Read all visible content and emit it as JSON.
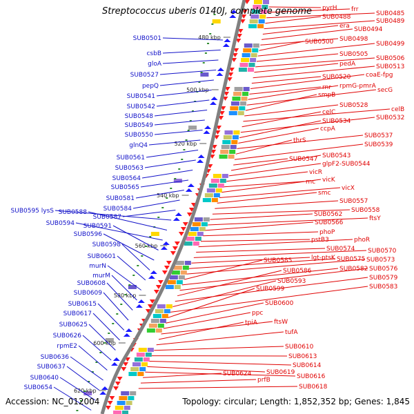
{
  "title": "Streptococcus uberis 0140J, complete genome",
  "footer": {
    "accession": "Accession: NC_012004",
    "topology": "Topology: circular; Length: 1,852,352 bp; Genes: 1,845"
  },
  "colors": {
    "left_labels": "#1010c8",
    "right_labels": "#e00000",
    "left_arrows": "#1a1aff",
    "right_arrows": "#ff1a1a",
    "backbone": "#808080",
    "tick_marks": "#2e8b2e"
  },
  "kbp_ticks": [
    "480 kbp",
    "500 kbp",
    "520 kbp",
    "540 kbp",
    "560 kbp",
    "580 kbp",
    "600 kbp",
    "620 kbp"
  ],
  "left_genes": [
    "SUB0501",
    "csbB",
    "gloA",
    "SUB0527",
    "pepQ",
    "SUB0541",
    "SUB0542",
    "SUB0548",
    "SUB0549",
    "SUB0550",
    "glnQ4",
    "SUB0561",
    "SUB0563",
    "SUB0564",
    "SUB0565",
    "SUB0581",
    "SUB0584",
    "SUB0587",
    "SUB0595 lysS",
    "SUB0588",
    "SUB0594",
    "SUB0591",
    "SUB0596",
    "SUB0598",
    "SUB0601",
    "murN",
    "murM",
    "SUB0608",
    "SUB0609",
    "SUB0615",
    "SUB0617",
    "SUB0625",
    "SUB0626",
    "rpmE2",
    "SUB0636",
    "SUB0637",
    "SUB0640",
    "SUB0654"
  ],
  "right_genes": [
    "pyrH",
    "frr",
    "SUB0485",
    "SUB0488",
    "SUB0489",
    "era",
    "SUB0494",
    "SUB0498",
    "SUB0500",
    "SUB0499",
    "SUB0505",
    "SUB0506",
    "pedA",
    "SUB0513",
    "SUB0520",
    "coaE-fpg",
    "rnr",
    "rpmG-pmrA",
    "secG",
    "smpB",
    "SUB0528",
    "celB",
    "celC",
    "SUB0532",
    "SUB0534",
    "ccpA",
    "SUB0537",
    "thrS",
    "SUB0539",
    "SUB0547",
    "SUB0543",
    "glpF2-SUB0544",
    "vicR",
    "rnc",
    "vicK",
    "vicX",
    "smc",
    "SUB0557",
    "SUB0558",
    "SUB0562",
    "ftsY",
    "SUB0566",
    "phoP",
    "pstB3",
    "phoR",
    "SUB0574",
    "SUB0570",
    "lgt-ptsK",
    "SUB0575",
    "SUB0573",
    "SUB0585",
    "SUB0582",
    "SUB0576",
    "SUB0586",
    "SUB0579",
    "SUB0593",
    "SUB0583",
    "SUB0599",
    "SUB0600",
    "ppc",
    "ftsW",
    "tpiA",
    "tufA",
    "SUB0610",
    "SUB0613",
    "SUB0614",
    "SUB0619",
    "SUB0616",
    "SUB0624",
    "prfB",
    "SUB0618"
  ]
}
